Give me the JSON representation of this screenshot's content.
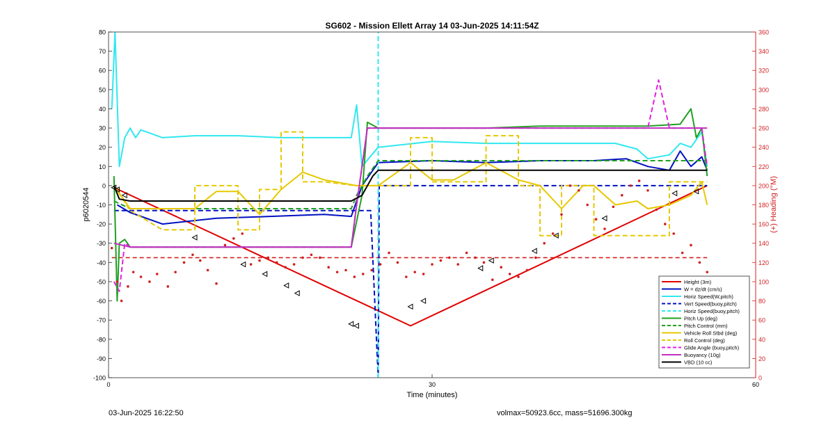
{
  "chart_data": {
    "type": "line",
    "title": "SG602 - Mission Ellett Array 14 03-Jun-2025 14:11:54Z",
    "xlabel": "Time (minutes)",
    "ylabel": "p6020544",
    "y2label": "(+) Heading (°M)",
    "xlim": [
      0,
      60
    ],
    "ylim": [
      -100,
      80
    ],
    "y2lim": [
      0,
      360
    ],
    "xticks": [
      0,
      30,
      60
    ],
    "yticks": [
      -100,
      -90,
      -80,
      -70,
      -60,
      -50,
      -40,
      -30,
      -20,
      -10,
      0,
      10,
      20,
      30,
      40,
      50,
      60,
      70,
      80
    ],
    "y2ticks": [
      0,
      20,
      40,
      60,
      80,
      100,
      120,
      140,
      160,
      180,
      200,
      220,
      240,
      260,
      280,
      300,
      320,
      340,
      360
    ],
    "grid": false,
    "legend_position": "bottom-right",
    "colors": {
      "height": "#e00000",
      "w": "#0010c0",
      "horiz": "#30e8f0",
      "pitch": "#20a020",
      "roll": "#e6c800",
      "glide": "#e020e0",
      "buoyancy": "#c030c0",
      "vbd": "#000000",
      "right_axis": "#d02020"
    },
    "series": [
      {
        "name": "Height (3m)",
        "color": "#e00000",
        "style": "solid",
        "axis": "left",
        "x": [
          0.5,
          28,
          55.5
        ],
        "y": [
          -1,
          -73,
          0
        ]
      },
      {
        "name": "W = dz/dt (cm/s)",
        "color": "#0010c0",
        "style": "solid",
        "axis": "left",
        "x": [
          0.8,
          2,
          5,
          10,
          15,
          20,
          22.5,
          23.5,
          25,
          30,
          35,
          40,
          45,
          48,
          50,
          52,
          53,
          54,
          55,
          55.5
        ],
        "y": [
          -10,
          -14,
          -20,
          -17,
          -16,
          -15,
          -16,
          0,
          12,
          13,
          12,
          13,
          13,
          14,
          10,
          8,
          18,
          10,
          15,
          8
        ]
      },
      {
        "name": "Horiz Speed(W,pitch)",
        "color": "#30e8f0",
        "style": "solid",
        "axis": "left",
        "x": [
          0.3,
          0.6,
          1,
          1.5,
          2,
          2.5,
          3,
          4,
          5,
          8,
          12,
          16,
          20,
          22.5,
          23,
          23.5,
          25,
          30,
          35,
          40,
          45,
          47,
          49,
          50,
          52,
          53,
          54,
          55,
          55.5
        ],
        "y": [
          40,
          80,
          10,
          25,
          30,
          25,
          29,
          27,
          25,
          26,
          26,
          25,
          25,
          25,
          42,
          10,
          20,
          23,
          22,
          22,
          22,
          22,
          19,
          14,
          16,
          22,
          20,
          28,
          10
        ]
      },
      {
        "name": "Vert Speed(buoy,pitch)",
        "color": "#0010c0",
        "style": "dashed",
        "axis": "left",
        "x": [
          0.5,
          24.3,
          25,
          25.1,
          55.5
        ],
        "y": [
          -13,
          -13,
          -100,
          0,
          0
        ]
      },
      {
        "name": "Horiz Speed(buoy,pitch)",
        "color": "#30e8f0",
        "style": "dashed",
        "axis": "left",
        "x": [
          25,
          25
        ],
        "y": [
          -100,
          80
        ]
      },
      {
        "name": "Pitch Up (deg)",
        "color": "#20a020",
        "style": "solid",
        "axis": "left",
        "x": [
          0.5,
          0.8,
          1,
          1.5,
          2,
          5,
          10,
          15,
          20,
          22.5,
          23.5,
          24,
          25,
          30,
          35,
          40,
          45,
          50,
          53,
          54,
          54.5,
          55,
          55.5
        ],
        "y": [
          5,
          -60,
          -30,
          -28,
          -32,
          -32,
          -32,
          -32,
          -32,
          -32,
          -5,
          33,
          30,
          30,
          30,
          31,
          31,
          31,
          32,
          40,
          25,
          30,
          5
        ]
      },
      {
        "name": "Pitch Control (mm)",
        "color": "#20a020",
        "style": "dashed",
        "axis": "left",
        "x": [
          0.5,
          2,
          5,
          10,
          15,
          20,
          22.5,
          23,
          24,
          25,
          30,
          35,
          40,
          45,
          50,
          55.5
        ],
        "y": [
          -8,
          -12,
          -12,
          -12,
          -12,
          -12,
          -12,
          -5,
          5,
          13,
          13,
          13,
          13,
          13,
          13,
          13
        ]
      },
      {
        "name": "Vehicle Roll Stbd (deg)",
        "color": "#e6c800",
        "style": "solid",
        "axis": "left",
        "x": [
          0.5,
          2,
          5,
          8,
          10,
          12,
          14,
          16,
          18,
          20,
          23,
          24,
          25,
          28,
          30,
          32,
          35,
          38,
          40,
          42,
          44,
          45,
          47,
          49,
          50,
          52,
          54,
          55,
          55.5
        ],
        "y": [
          0,
          -12,
          -12,
          -12,
          -3,
          -3,
          -15,
          -2,
          7,
          3,
          0,
          0,
          0,
          12,
          3,
          3,
          12,
          3,
          0,
          -12,
          0,
          0,
          -10,
          -8,
          -12,
          -10,
          -5,
          2,
          -10
        ]
      },
      {
        "name": "Roll Control (deg)",
        "color": "#e6c800",
        "style": "dashed",
        "axis": "left",
        "x": [
          0.5,
          2,
          5,
          8,
          8,
          12,
          12,
          14,
          14,
          16,
          16,
          18,
          18,
          20,
          23,
          25,
          28,
          28,
          30,
          30,
          35,
          35,
          38,
          38,
          40,
          40,
          42,
          42,
          45,
          45,
          48,
          50,
          52,
          52,
          55.5
        ],
        "y": [
          0,
          -13,
          -23,
          -23,
          0,
          0,
          -23,
          -23,
          -2,
          -2,
          28,
          28,
          2,
          2,
          0,
          0,
          0,
          25,
          25,
          2,
          2,
          26,
          26,
          0,
          0,
          -26,
          -26,
          0,
          0,
          -26,
          -26,
          -26,
          -26,
          2,
          2
        ]
      },
      {
        "name": "Glide Angle (buoy,pitch)",
        "color": "#e020e0",
        "style": "dashed",
        "axis": "left",
        "x": [
          0.5,
          1,
          1.5,
          2,
          5,
          10,
          15,
          20,
          22.5,
          23,
          24,
          25,
          30,
          35,
          40,
          45,
          48,
          50,
          51,
          52,
          54,
          55,
          55.5
        ],
        "y": [
          -50,
          -55,
          -30,
          -32,
          -32,
          -32,
          -32,
          -32,
          -32,
          -10,
          30,
          30,
          30,
          30,
          30,
          30,
          30,
          30,
          55,
          30,
          30,
          30,
          10
        ]
      },
      {
        "name": "Buoyancy (10g)",
        "color": "#c030c0",
        "style": "solid",
        "axis": "left",
        "x": [
          0.5,
          2,
          5,
          10,
          15,
          20,
          22.5,
          23,
          24,
          25,
          30,
          35,
          40,
          45,
          50,
          55.5
        ],
        "y": [
          -30,
          -32,
          -32,
          -32,
          -32,
          -32,
          -32,
          -10,
          30,
          30,
          30,
          30,
          30,
          30,
          30,
          30
        ]
      },
      {
        "name": "VBD (10 cc)",
        "color": "#000000",
        "style": "solid",
        "axis": "left",
        "x": [
          0.5,
          1,
          2,
          22.5,
          23.5,
          24.5,
          25,
          55.5
        ],
        "y": [
          0,
          -7,
          -8,
          -8,
          -5,
          5,
          8,
          8
        ]
      }
    ],
    "heading_reference": {
      "axis": "right",
      "color": "#d02020",
      "style": "dashed",
      "y": 125
    },
    "heading_points": {
      "axis": "right",
      "color": "#d02020",
      "style": "dots",
      "x": [
        0.3,
        0.8,
        1.2,
        1.8,
        2.3,
        3,
        3.8,
        4.5,
        5.5,
        6.2,
        7,
        7.8,
        8.5,
        9.2,
        10,
        10.8,
        11.6,
        12.4,
        13.2,
        14,
        14.8,
        15.6,
        16.4,
        17.2,
        18,
        18.8,
        19.6,
        20.4,
        21.2,
        22,
        22.8,
        23.6,
        24.4,
        25.2,
        26,
        26.8,
        27.6,
        28.4,
        29.2,
        30,
        30.8,
        31.6,
        32.4,
        33.2,
        34,
        34.8,
        35.6,
        36.4,
        37.2,
        38,
        38.8,
        39.6,
        40.4,
        41.2,
        42,
        42.8,
        43.6,
        44.4,
        45.2,
        46,
        46.8,
        47.6,
        48.4,
        49.2,
        50,
        50.8,
        51.6,
        52.4,
        53.2,
        54,
        54.8,
        55.5
      ],
      "y": [
        135,
        100,
        80,
        95,
        110,
        105,
        100,
        108,
        95,
        110,
        120,
        128,
        122,
        112,
        98,
        138,
        145,
        150,
        118,
        122,
        125,
        120,
        115,
        118,
        125,
        128,
        125,
        115,
        110,
        112,
        105,
        108,
        112,
        118,
        130,
        120,
        105,
        110,
        108,
        118,
        122,
        125,
        118,
        130,
        125,
        120,
        102,
        115,
        108,
        105,
        112,
        125,
        140,
        150,
        170,
        200,
        195,
        180,
        165,
        155,
        178,
        190,
        200,
        205,
        195,
        175,
        160,
        150,
        130,
        138,
        120,
        110
      ]
    },
    "marker_points": {
      "color": "#000000",
      "shape": "triangle",
      "x": [
        0.5,
        0.8,
        1.5,
        8,
        12.5,
        14.5,
        16.5,
        17.5,
        22.5,
        23,
        28,
        29.2,
        34.5,
        35.5,
        39.5,
        41.5,
        46,
        52.5,
        54.5
      ],
      "y": [
        -1,
        -2,
        -5,
        -27,
        -41,
        -46,
        -52,
        -56,
        -72,
        -73,
        -63,
        -60,
        -43,
        -39,
        -34,
        -26,
        -17,
        -4,
        -3
      ]
    }
  },
  "footer": {
    "left": "03-Jun-2025 16:22:50",
    "right": "volmax=50923.6cc, mass=51696.300kg"
  }
}
